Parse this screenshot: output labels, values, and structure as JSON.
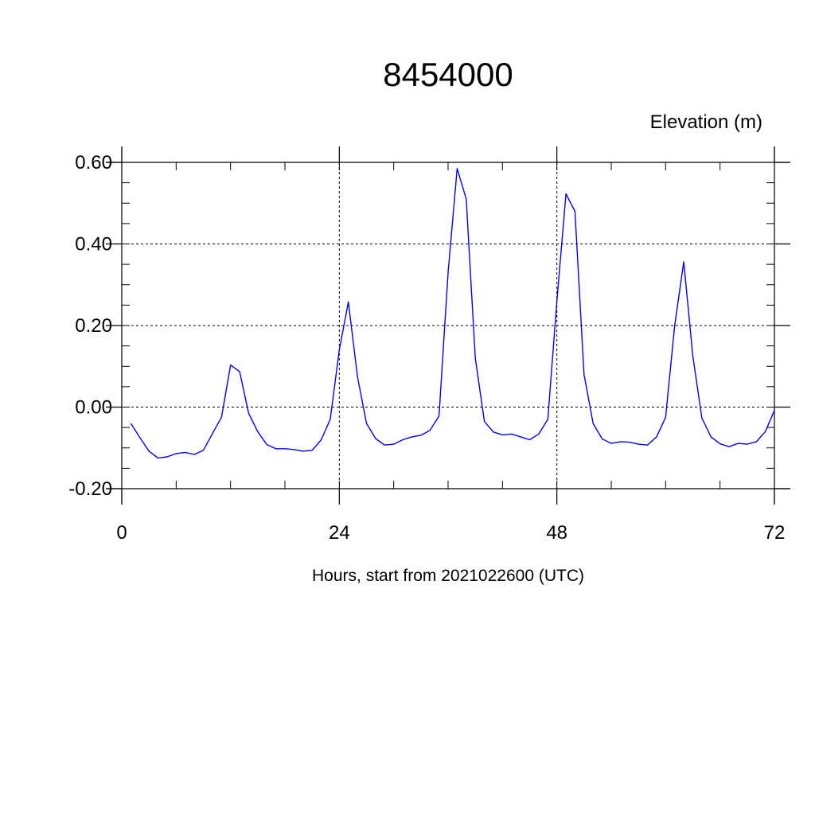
{
  "chart_data": {
    "type": "line",
    "title": "8454000",
    "ylabel": "Elevation (m)",
    "xlabel": "Hours, start from 2021022600 (UTC)",
    "xlim": [
      0,
      72
    ],
    "ylim": [
      -0.2,
      0.6
    ],
    "x_ticks": [
      0,
      24,
      48,
      72
    ],
    "x_tick_labels": [
      "0",
      "24",
      "48",
      "72"
    ],
    "y_ticks": [
      -0.2,
      0.0,
      0.2,
      0.4,
      0.6
    ],
    "y_tick_labels": [
      "-0.20",
      "0.00",
      "0.20",
      "0.40",
      "0.60"
    ],
    "grid": "dashed at major ticks",
    "series": [
      {
        "color": "#0000ff",
        "x": [
          1,
          2,
          3,
          4,
          5,
          6,
          7,
          8,
          9,
          10,
          11,
          12,
          13,
          14,
          15,
          16,
          17,
          18,
          19,
          20,
          21,
          22,
          23,
          24,
          25,
          26,
          27,
          28,
          29,
          30,
          31,
          32,
          33,
          34,
          35,
          36,
          37,
          38,
          39,
          40,
          41,
          42,
          43,
          44,
          45,
          46,
          47,
          48,
          49,
          50,
          51,
          52,
          53,
          54,
          55,
          56,
          57,
          58,
          59,
          60,
          61,
          62,
          63,
          64,
          65,
          66,
          67,
          68,
          69,
          70,
          71,
          72
        ],
        "y": [
          -0.04,
          -0.075,
          -0.108,
          -0.125,
          -0.122,
          -0.114,
          -0.111,
          -0.116,
          -0.106,
          -0.065,
          -0.025,
          0.103,
          0.087,
          -0.015,
          -0.06,
          -0.092,
          -0.102,
          -0.102,
          -0.104,
          -0.108,
          -0.106,
          -0.08,
          -0.03,
          0.14,
          0.258,
          0.075,
          -0.04,
          -0.077,
          -0.093,
          -0.091,
          -0.08,
          -0.073,
          -0.069,
          -0.057,
          -0.022,
          0.33,
          0.585,
          0.51,
          0.12,
          -0.035,
          -0.061,
          -0.068,
          -0.066,
          -0.073,
          -0.08,
          -0.066,
          -0.03,
          0.26,
          0.523,
          0.48,
          0.08,
          -0.04,
          -0.078,
          -0.089,
          -0.085,
          -0.086,
          -0.091,
          -0.093,
          -0.073,
          -0.025,
          0.2,
          0.356,
          0.125,
          -0.027,
          -0.073,
          -0.09,
          -0.097,
          -0.089,
          -0.091,
          -0.085,
          -0.06,
          -0.008
        ]
      }
    ]
  }
}
